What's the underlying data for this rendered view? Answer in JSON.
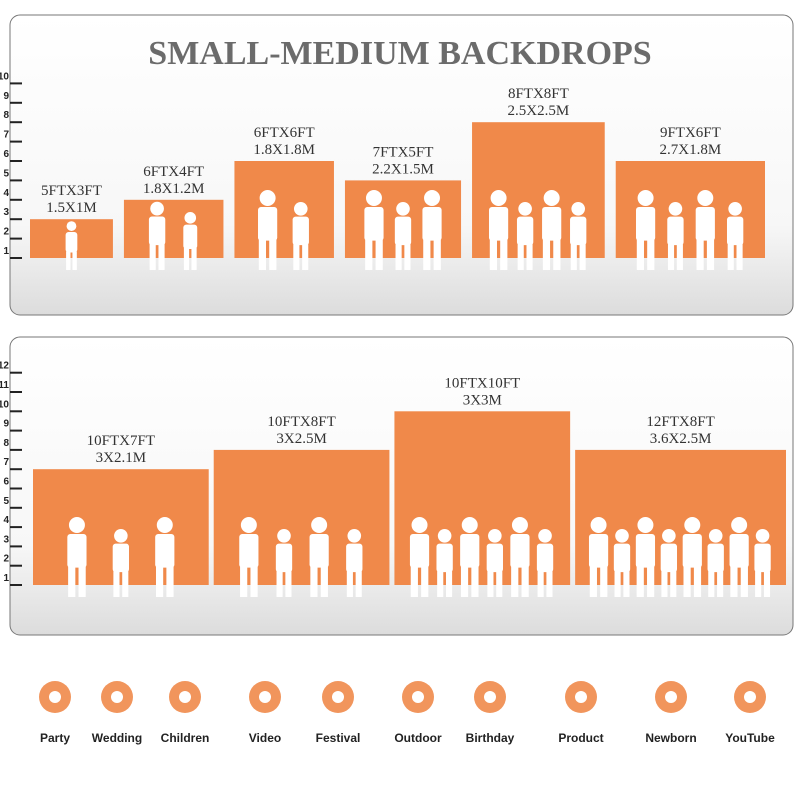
{
  "title": "SMALL-MEDIUM BACKDROPS",
  "panels": [
    {
      "ticks": [
        1,
        2,
        3,
        4,
        5,
        6,
        7,
        8,
        9,
        10
      ],
      "backdrops": [
        {
          "label_ft": "5FTX3FT",
          "label_m": "1.5X1M",
          "width_ft": 5,
          "height_ft": 3
        },
        {
          "label_ft": "6FTX4FT",
          "label_m": "1.8X1.2M",
          "width_ft": 6,
          "height_ft": 4
        },
        {
          "label_ft": "6FTX6FT",
          "label_m": "1.8X1.8M",
          "width_ft": 6,
          "height_ft": 6
        },
        {
          "label_ft": "7FTX5FT",
          "label_m": "2.2X1.5M",
          "width_ft": 7,
          "height_ft": 5
        },
        {
          "label_ft": "8FTX8FT",
          "label_m": "2.5X2.5M",
          "width_ft": 8,
          "height_ft": 8
        },
        {
          "label_ft": "9FTX6FT",
          "label_m": "2.7X1.8M",
          "width_ft": 9,
          "height_ft": 6
        }
      ]
    },
    {
      "ticks": [
        1,
        2,
        3,
        4,
        5,
        6,
        7,
        8,
        9,
        10,
        11,
        12
      ],
      "backdrops": [
        {
          "label_ft": "10FTX7FT",
          "label_m": "3X2.1M",
          "width_ft": 10,
          "height_ft": 7
        },
        {
          "label_ft": "10FTX8FT",
          "label_m": "3X2.5M",
          "width_ft": 10,
          "height_ft": 8
        },
        {
          "label_ft": "10FTX10FT",
          "label_m": "3X3M",
          "width_ft": 10,
          "height_ft": 10
        },
        {
          "label_ft": "12FTX8FT",
          "label_m": "3.6X2.5M",
          "width_ft": 12,
          "height_ft": 8
        }
      ]
    }
  ],
  "uses": [
    "Party",
    "Wedding",
    "Children",
    "Video",
    "Festival",
    "Outdoor",
    "Birthday",
    "Product",
    "Newborn",
    "YouTube"
  ]
}
